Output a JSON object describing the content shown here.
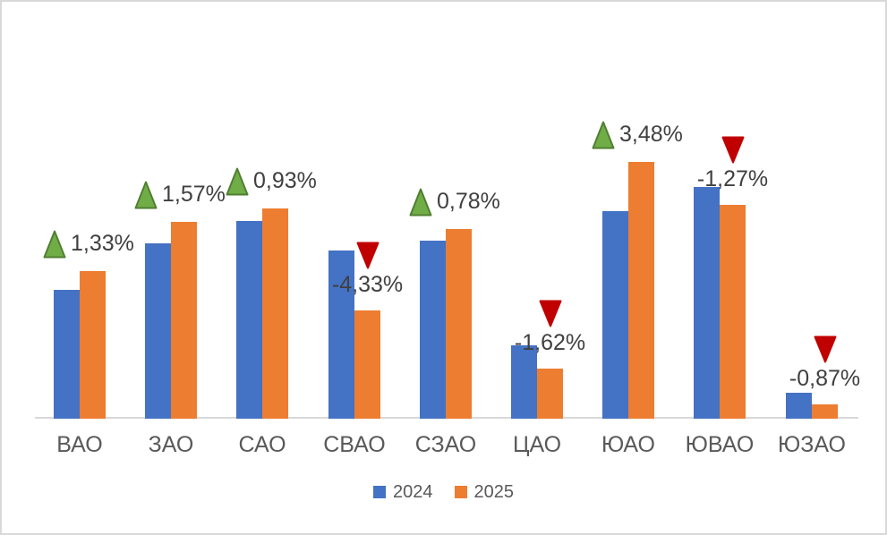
{
  "chart_data": {
    "type": "bar",
    "title": "",
    "xlabel": "",
    "ylabel": "",
    "y_axis_visible": false,
    "grid": false,
    "legend_position": "bottom",
    "categories": [
      "ВАО",
      "ЗАО",
      "САО",
      "СВАО",
      "СЗАО",
      "ЦАО",
      "ЮАО",
      "ЮВАО",
      "ЮЗАО"
    ],
    "series": [
      {
        "name": "2024",
        "color": "#4472C4",
        "values": [
          144,
          196,
          221,
          188,
          199,
          82,
          232,
          259,
          29
        ]
      },
      {
        "name": "2025",
        "color": "#ED7D31",
        "values": [
          165,
          220,
          235,
          121,
          212,
          56,
          287,
          239,
          16
        ]
      }
    ],
    "values_unit": "relative bar height, estimated (no y-axis shown)",
    "ylim": [
      0,
      300
    ],
    "annotations": [
      {
        "category": "ВАО",
        "direction": "up",
        "label": "1,33%"
      },
      {
        "category": "ЗАО",
        "direction": "up",
        "label": "1,57%"
      },
      {
        "category": "САО",
        "direction": "up",
        "label": "0,93%"
      },
      {
        "category": "СВАО",
        "direction": "down",
        "label": "-4,33%"
      },
      {
        "category": "СЗАО",
        "direction": "up",
        "label": "0,78%"
      },
      {
        "category": "ЦАО",
        "direction": "down",
        "label": "-1,62%"
      },
      {
        "category": "ЮАО",
        "direction": "up",
        "label": "3,48%"
      },
      {
        "category": "ЮВАО",
        "direction": "down",
        "label": "-1,27%"
      },
      {
        "category": "ЮЗАО",
        "direction": "down",
        "label": "-0,87%"
      }
    ],
    "colors": {
      "up_triangle_fill": "#70AD47",
      "up_triangle_stroke": "#507E32",
      "down_triangle_fill": "#C00000",
      "axis_line": "#D9D9D9",
      "frame_border": "#D9D9D9",
      "category_text": "#595959",
      "annotation_text": "#404040",
      "legend_text": "#595959",
      "background": "#FFFFFF"
    }
  }
}
